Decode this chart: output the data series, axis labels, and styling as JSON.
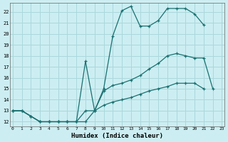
{
  "xlabel": "Humidex (Indice chaleur)",
  "bg_color": "#cceef2",
  "grid_color": "#aad8dc",
  "line_color": "#1a7070",
  "line1_y": [
    13,
    13,
    12.5,
    12,
    12,
    12,
    12,
    12,
    12,
    13,
    15,
    19.8,
    22.1,
    22.5,
    20.7,
    20.7,
    21.2,
    22.3,
    22.3,
    22.3,
    21.8,
    20.8,
    null,
    null
  ],
  "line2_y": [
    13,
    13,
    12.5,
    12,
    12,
    12,
    12,
    12,
    13,
    13,
    14.8,
    15.3,
    15.5,
    15.8,
    16.2,
    16.8,
    17.3,
    18.0,
    18.2,
    18.0,
    17.8,
    17.8,
    15.0,
    null
  ],
  "line3_y": [
    13,
    13,
    12.5,
    12,
    12,
    12,
    12,
    12,
    17.5,
    13,
    13.5,
    13.8,
    14.0,
    14.2,
    14.5,
    14.8,
    15.0,
    15.2,
    15.5,
    15.5,
    15.5,
    15.0,
    null,
    null
  ],
  "xlim": [
    -0.3,
    23.3
  ],
  "ylim": [
    11.6,
    22.8
  ],
  "yticks": [
    12,
    13,
    14,
    15,
    16,
    17,
    18,
    19,
    20,
    21,
    22
  ],
  "xticks": [
    0,
    1,
    2,
    3,
    4,
    5,
    6,
    7,
    8,
    9,
    10,
    11,
    12,
    13,
    14,
    15,
    16,
    17,
    18,
    19,
    20,
    21,
    22,
    23
  ]
}
